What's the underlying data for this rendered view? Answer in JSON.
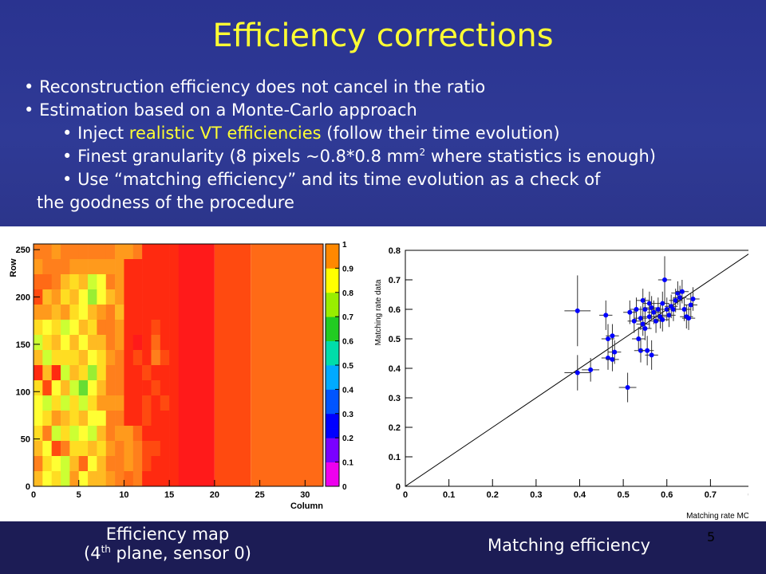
{
  "slide": {
    "title": "Efficiency corrections",
    "bullets": [
      "Reconstruction efficiency does not cancel in the ratio",
      "Estimation based on a Monte-Carlo approach"
    ],
    "sub_bullets": {
      "inject_prefix": "Inject ",
      "inject_highlight": "realistic VT efficiencies",
      "inject_suffix": " (follow their time evolution)",
      "granularity_a": "Finest granularity (8 pixels ~0.8*0.8 mm",
      "granularity_sup": "2",
      "granularity_b": " where statistics is enough)",
      "matching_line1": "Use “matching efficiency” and its time evolution as a check of",
      "matching_line2": "the goodness of the procedure"
    },
    "caption_left_a": "Efficiency map",
    "caption_left_b1": "(4",
    "caption_left_sup": "th",
    "caption_left_b2": " plane, sensor 0)",
    "caption_right": "Matching efficiency",
    "page_number": "5",
    "colors": {
      "title": "#ffff33",
      "background": "#2b3488",
      "footer": "#1c1c55"
    }
  },
  "chart_data": [
    {
      "type": "heatmap",
      "xlabel": "Column",
      "ylabel": "Row",
      "xlim": [
        0,
        32
      ],
      "ylim": [
        0,
        256
      ],
      "xticks": [
        0,
        5,
        10,
        15,
        20,
        25,
        30
      ],
      "yticks": [
        0,
        50,
        100,
        150,
        200,
        250
      ],
      "zlim": [
        0,
        1
      ],
      "zticks": [
        0,
        0.1,
        0.2,
        0.3,
        0.4,
        0.5,
        0.6,
        0.7,
        0.8,
        0.9,
        1
      ],
      "colorbar": "right",
      "col_groups": [
        {
          "x0": 0,
          "x1": 16,
          "note": "mixed cells 0.6-0.95 (16x16 pixel granularity)"
        },
        {
          "x0": 16,
          "x1": 20,
          "value": 0.95
        },
        {
          "x0": 20,
          "x1": 24,
          "value": 0.9
        },
        {
          "x0": 24,
          "x1": 32,
          "value": 0.88
        }
      ],
      "cells": [
        [
          0.86,
          0.85,
          0.84,
          0.85,
          0.85,
          0.86,
          0.85,
          0.86,
          0.85,
          0.84,
          0.84,
          0.85,
          0.93,
          0.93,
          0.93,
          0.93
        ],
        [
          0.84,
          0.85,
          0.85,
          0.86,
          0.84,
          0.84,
          0.84,
          0.83,
          0.83,
          0.84,
          0.93,
          0.93,
          0.93,
          0.93,
          0.93,
          0.93
        ],
        [
          0.88,
          0.88,
          0.85,
          0.8,
          0.78,
          0.82,
          0.73,
          0.76,
          0.86,
          0.84,
          0.93,
          0.93,
          0.93,
          0.93,
          0.93,
          0.93
        ],
        [
          0.9,
          0.8,
          0.84,
          0.78,
          0.8,
          0.75,
          0.68,
          0.74,
          0.82,
          0.84,
          0.94,
          0.94,
          0.94,
          0.94,
          0.93,
          0.93
        ],
        [
          0.84,
          0.84,
          0.8,
          0.83,
          0.78,
          0.76,
          0.8,
          0.84,
          0.86,
          0.82,
          0.92,
          0.92,
          0.93,
          0.93,
          0.93,
          0.93
        ],
        [
          0.78,
          0.76,
          0.79,
          0.72,
          0.74,
          0.8,
          0.77,
          0.86,
          0.86,
          0.84,
          0.92,
          0.93,
          0.93,
          0.91,
          0.93,
          0.93
        ],
        [
          0.72,
          0.79,
          0.82,
          0.75,
          0.8,
          0.76,
          0.81,
          0.8,
          0.85,
          0.84,
          0.94,
          0.95,
          0.94,
          0.88,
          0.93,
          0.93
        ],
        [
          0.8,
          0.72,
          0.77,
          0.78,
          0.79,
          0.82,
          0.74,
          0.78,
          0.84,
          0.86,
          0.93,
          0.91,
          0.94,
          0.86,
          0.9,
          0.93
        ],
        [
          0.92,
          0.81,
          0.92,
          0.72,
          0.8,
          0.78,
          0.68,
          0.79,
          0.85,
          0.86,
          0.94,
          0.93,
          0.9,
          0.93,
          0.92,
          0.93
        ],
        [
          0.78,
          0.9,
          0.76,
          0.8,
          0.7,
          0.66,
          0.76,
          0.82,
          0.86,
          0.85,
          0.92,
          0.93,
          0.94,
          0.91,
          0.93,
          0.93
        ],
        [
          0.76,
          0.71,
          0.78,
          0.73,
          0.78,
          0.72,
          0.78,
          0.83,
          0.84,
          0.84,
          0.93,
          0.92,
          0.91,
          0.93,
          0.91,
          0.93
        ],
        [
          0.74,
          0.78,
          0.84,
          0.8,
          0.78,
          0.8,
          0.74,
          0.75,
          0.86,
          0.85,
          0.92,
          0.93,
          0.9,
          0.92,
          0.93,
          0.93
        ],
        [
          0.78,
          0.86,
          0.73,
          0.78,
          0.7,
          0.75,
          0.72,
          0.8,
          0.85,
          0.84,
          0.84,
          0.88,
          0.92,
          0.92,
          0.92,
          0.93
        ],
        [
          0.82,
          0.75,
          0.9,
          0.86,
          0.77,
          0.79,
          0.82,
          0.78,
          0.84,
          0.86,
          0.84,
          0.86,
          0.9,
          0.9,
          0.92,
          0.93
        ],
        [
          0.86,
          0.78,
          0.76,
          0.73,
          0.8,
          0.88,
          0.76,
          0.82,
          0.85,
          0.85,
          0.84,
          0.86,
          0.9,
          0.93,
          0.93,
          0.93
        ],
        [
          0.8,
          0.74,
          0.78,
          0.72,
          0.84,
          0.76,
          0.8,
          0.82,
          0.84,
          0.85,
          0.88,
          0.86,
          0.93,
          0.93,
          0.93,
          0.93
        ]
      ]
    },
    {
      "type": "scatter",
      "xlabel": "Matching rate MC",
      "ylabel": "Matching rate data",
      "xlim": [
        0,
        0.8
      ],
      "ylim": [
        0,
        0.8
      ],
      "xticks": [
        0,
        0.1,
        0.2,
        0.3,
        0.4,
        0.5,
        0.6,
        0.7,
        0.8
      ],
      "yticks": [
        0,
        0.1,
        0.2,
        0.3,
        0.4,
        0.5,
        0.6,
        0.7,
        0.8
      ],
      "reference_line": "y = x",
      "marker_color": "#0000ff",
      "points": [
        {
          "x": 0.395,
          "y": 0.595,
          "ex": 0.03,
          "ey": 0.12
        },
        {
          "x": 0.395,
          "y": 0.385,
          "ex": 0.03,
          "ey": 0.06
        },
        {
          "x": 0.425,
          "y": 0.395,
          "ex": 0.02,
          "ey": 0.04
        },
        {
          "x": 0.46,
          "y": 0.58,
          "ex": 0.015,
          "ey": 0.05
        },
        {
          "x": 0.465,
          "y": 0.5,
          "ex": 0.015,
          "ey": 0.05
        },
        {
          "x": 0.465,
          "y": 0.435,
          "ex": 0.015,
          "ey": 0.04
        },
        {
          "x": 0.475,
          "y": 0.51,
          "ex": 0.015,
          "ey": 0.04
        },
        {
          "x": 0.475,
          "y": 0.43,
          "ex": 0.015,
          "ey": 0.04
        },
        {
          "x": 0.48,
          "y": 0.455,
          "ex": 0.015,
          "ey": 0.04
        },
        {
          "x": 0.51,
          "y": 0.335,
          "ex": 0.02,
          "ey": 0.05
        },
        {
          "x": 0.515,
          "y": 0.59,
          "ex": 0.015,
          "ey": 0.04
        },
        {
          "x": 0.525,
          "y": 0.56,
          "ex": 0.015,
          "ey": 0.04
        },
        {
          "x": 0.53,
          "y": 0.6,
          "ex": 0.015,
          "ey": 0.04
        },
        {
          "x": 0.535,
          "y": 0.5,
          "ex": 0.015,
          "ey": 0.04
        },
        {
          "x": 0.54,
          "y": 0.57,
          "ex": 0.015,
          "ey": 0.04
        },
        {
          "x": 0.54,
          "y": 0.46,
          "ex": 0.015,
          "ey": 0.04
        },
        {
          "x": 0.545,
          "y": 0.63,
          "ex": 0.015,
          "ey": 0.04
        },
        {
          "x": 0.545,
          "y": 0.55,
          "ex": 0.015,
          "ey": 0.04
        },
        {
          "x": 0.55,
          "y": 0.6,
          "ex": 0.015,
          "ey": 0.04
        },
        {
          "x": 0.55,
          "y": 0.535,
          "ex": 0.015,
          "ey": 0.04
        },
        {
          "x": 0.555,
          "y": 0.46,
          "ex": 0.015,
          "ey": 0.05
        },
        {
          "x": 0.56,
          "y": 0.62,
          "ex": 0.015,
          "ey": 0.04
        },
        {
          "x": 0.56,
          "y": 0.575,
          "ex": 0.015,
          "ey": 0.04
        },
        {
          "x": 0.565,
          "y": 0.605,
          "ex": 0.015,
          "ey": 0.04
        },
        {
          "x": 0.565,
          "y": 0.445,
          "ex": 0.015,
          "ey": 0.05
        },
        {
          "x": 0.57,
          "y": 0.59,
          "ex": 0.015,
          "ey": 0.04
        },
        {
          "x": 0.575,
          "y": 0.56,
          "ex": 0.015,
          "ey": 0.04
        },
        {
          "x": 0.58,
          "y": 0.6,
          "ex": 0.015,
          "ey": 0.04
        },
        {
          "x": 0.585,
          "y": 0.575,
          "ex": 0.015,
          "ey": 0.04
        },
        {
          "x": 0.59,
          "y": 0.62,
          "ex": 0.015,
          "ey": 0.04
        },
        {
          "x": 0.59,
          "y": 0.565,
          "ex": 0.015,
          "ey": 0.04
        },
        {
          "x": 0.595,
          "y": 0.7,
          "ex": 0.015,
          "ey": 0.08
        },
        {
          "x": 0.6,
          "y": 0.6,
          "ex": 0.015,
          "ey": 0.04
        },
        {
          "x": 0.605,
          "y": 0.58,
          "ex": 0.015,
          "ey": 0.04
        },
        {
          "x": 0.61,
          "y": 0.61,
          "ex": 0.015,
          "ey": 0.04
        },
        {
          "x": 0.615,
          "y": 0.6,
          "ex": 0.015,
          "ey": 0.04
        },
        {
          "x": 0.62,
          "y": 0.63,
          "ex": 0.015,
          "ey": 0.04
        },
        {
          "x": 0.625,
          "y": 0.655,
          "ex": 0.015,
          "ey": 0.04
        },
        {
          "x": 0.63,
          "y": 0.64,
          "ex": 0.015,
          "ey": 0.04
        },
        {
          "x": 0.635,
          "y": 0.66,
          "ex": 0.015,
          "ey": 0.04
        },
        {
          "x": 0.64,
          "y": 0.6,
          "ex": 0.015,
          "ey": 0.04
        },
        {
          "x": 0.645,
          "y": 0.575,
          "ex": 0.015,
          "ey": 0.04
        },
        {
          "x": 0.65,
          "y": 0.57,
          "ex": 0.015,
          "ey": 0.04
        },
        {
          "x": 0.655,
          "y": 0.615,
          "ex": 0.015,
          "ey": 0.04
        },
        {
          "x": 0.66,
          "y": 0.635,
          "ex": 0.015,
          "ey": 0.04
        }
      ]
    }
  ]
}
